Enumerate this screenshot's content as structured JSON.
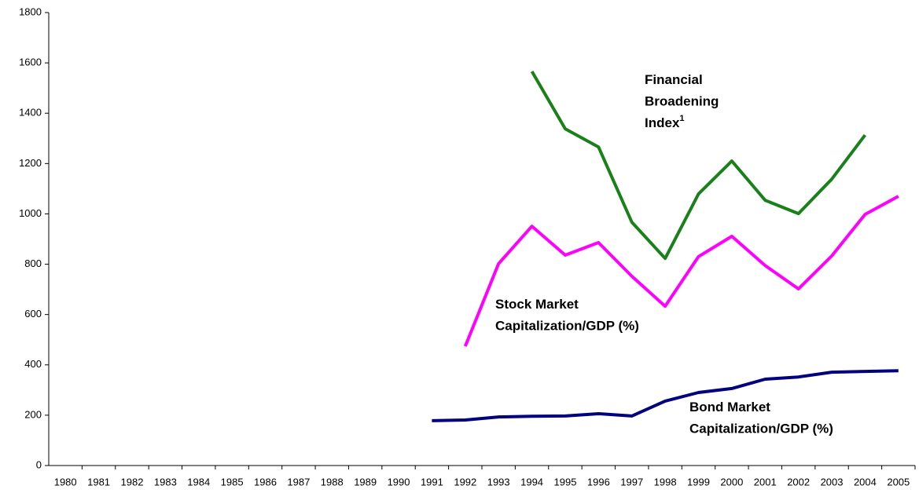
{
  "chart_data": {
    "type": "line",
    "categories": [
      "1980",
      "1981",
      "1982",
      "1983",
      "1984",
      "1985",
      "1986",
      "1987",
      "1988",
      "1989",
      "1990",
      "1991",
      "1992",
      "1993",
      "1994",
      "1995",
      "1996",
      "1997",
      "1998",
      "1999",
      "2000",
      "2001",
      "2002",
      "2003",
      "2004",
      "2005"
    ],
    "series": [
      {
        "name": "Financial Broadening Index",
        "color": "#1a801a",
        "values": [
          null,
          null,
          null,
          null,
          null,
          null,
          null,
          null,
          null,
          null,
          null,
          null,
          null,
          null,
          1566,
          1338,
          1266,
          967,
          823,
          1079,
          1210,
          1054,
          1001,
          1138,
          1313,
          null
        ]
      },
      {
        "name": "Stock Market Capitalization/GDP (%)",
        "color": "#ff00ff",
        "values": [
          null,
          null,
          null,
          null,
          null,
          null,
          null,
          null,
          null,
          null,
          null,
          null,
          474,
          802,
          951,
          836,
          886,
          752,
          633,
          830,
          911,
          795,
          702,
          833,
          998,
          1070
        ]
      },
      {
        "name": "Bond Market Capitalization/GDP (%)",
        "color": "#000080",
        "values": [
          null,
          null,
          null,
          null,
          null,
          null,
          null,
          null,
          null,
          null,
          null,
          178,
          181,
          193,
          196,
          197,
          206,
          197,
          256,
          290,
          306,
          343,
          352,
          371,
          374,
          377
        ]
      }
    ],
    "annotations": [
      {
        "lines": [
          "Financial",
          "Broadening",
          "Index"
        ],
        "superscript": "1"
      },
      {
        "lines": [
          "Stock Market",
          "Capitalization/GDP (%)"
        ]
      },
      {
        "lines": [
          "Bond Market",
          "Capitalization/GDP (%)"
        ]
      }
    ],
    "ylim": [
      0,
      1800
    ],
    "yticks": [
      0,
      200,
      400,
      600,
      800,
      1000,
      1200,
      1400,
      1600,
      1800
    ],
    "grid": false
  }
}
